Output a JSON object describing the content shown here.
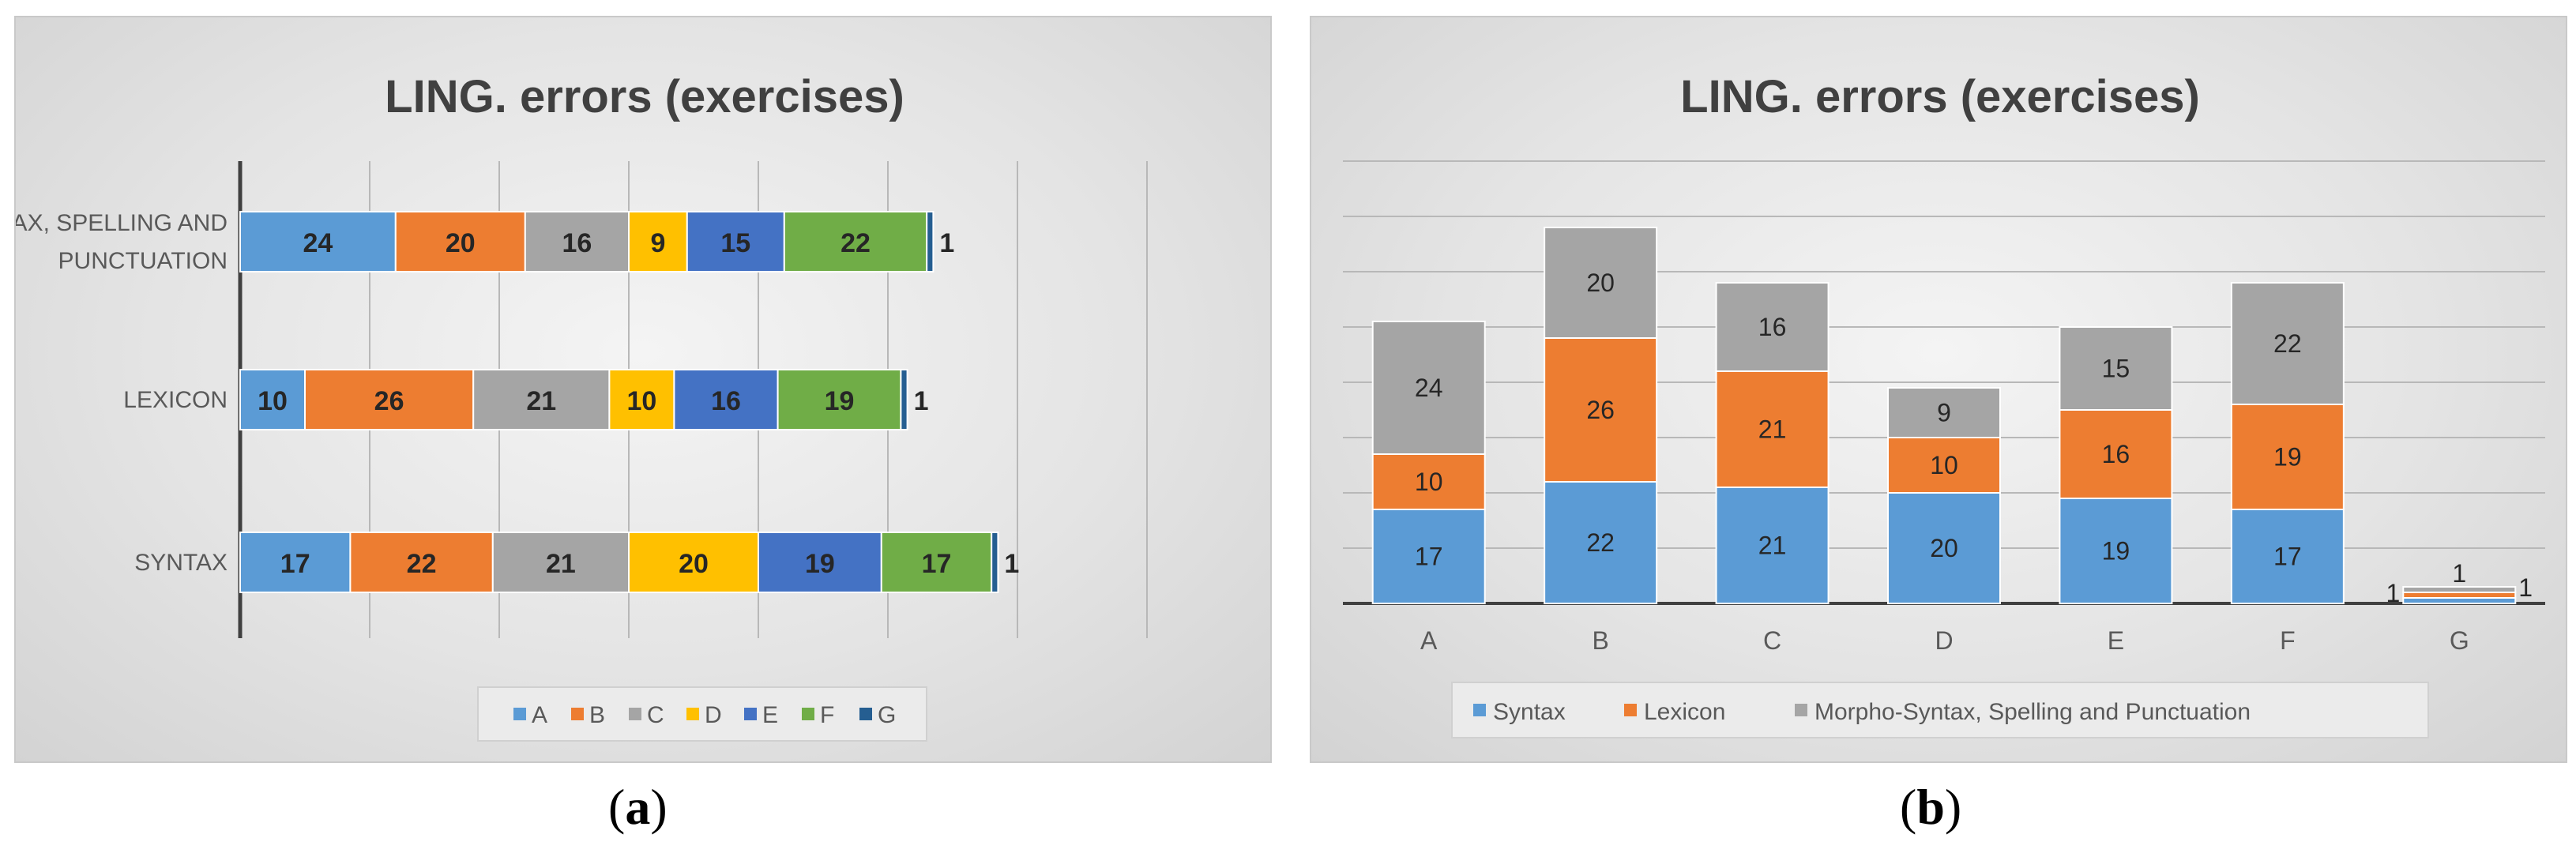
{
  "chart_data": [
    {
      "type": "bar",
      "orientation": "horizontal",
      "stacked": true,
      "title": "LING. errors (exercises)",
      "panel_label": "a",
      "categories": [
        "MORPHO-SYNTAX, SPELLING AND PUNCTUATION",
        "LEXICON",
        "SYNTAX"
      ],
      "series": [
        {
          "name": "A",
          "color": "#5b9bd5",
          "values": [
            24,
            10,
            17
          ]
        },
        {
          "name": "B",
          "color": "#ed7d31",
          "values": [
            20,
            26,
            22
          ]
        },
        {
          "name": "C",
          "color": "#a5a5a5",
          "values": [
            16,
            21,
            21
          ]
        },
        {
          "name": "D",
          "color": "#ffc000",
          "values": [
            9,
            10,
            20
          ]
        },
        {
          "name": "E",
          "color": "#4472c4",
          "values": [
            15,
            16,
            19
          ]
        },
        {
          "name": "F",
          "color": "#70ad47",
          "values": [
            22,
            19,
            17
          ]
        },
        {
          "name": "G",
          "color": "#255e91",
          "values": [
            1,
            1,
            1
          ]
        }
      ],
      "xlim": [
        0,
        140
      ],
      "grid": true,
      "legend": "bottom"
    },
    {
      "type": "bar",
      "stacked": true,
      "title": "LING. errors (exercises)",
      "panel_label": "b",
      "categories": [
        "A",
        "B",
        "C",
        "D",
        "E",
        "F",
        "G"
      ],
      "series": [
        {
          "name": "Syntax",
          "color": "#5b9bd5",
          "values": [
            17,
            22,
            21,
            20,
            19,
            17,
            1
          ]
        },
        {
          "name": "Lexicon",
          "color": "#ed7d31",
          "values": [
            10,
            26,
            21,
            10,
            16,
            19,
            1
          ]
        },
        {
          "name": "Morpho-Syntax, Spelling and Punctuation",
          "color": "#a5a5a5",
          "values": [
            24,
            20,
            16,
            9,
            15,
            22,
            1
          ]
        }
      ],
      "ylim": [
        0,
        80
      ],
      "grid": true,
      "legend": "bottom"
    }
  ]
}
